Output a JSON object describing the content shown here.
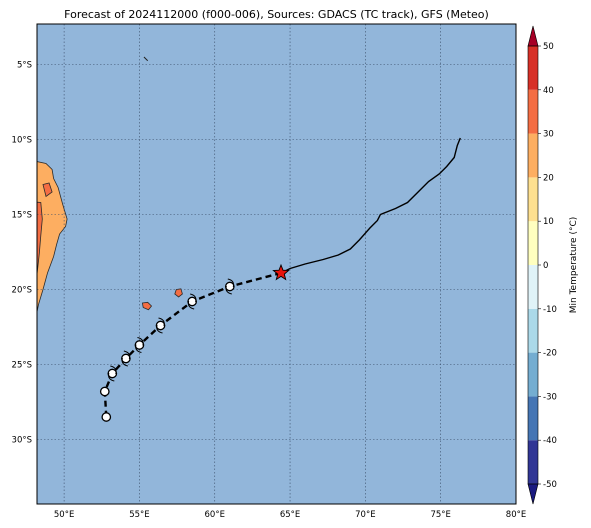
{
  "title": "Forecast of 2024112000 (f000-006), Sources: GDACS (TC track), GFS (Meteo)",
  "map": {
    "lon_range": [
      48.2,
      80
    ],
    "lat_range": [
      -34.3,
      -2.3
    ],
    "lon_ticks": [
      {
        "value": 50,
        "label": "50°E"
      },
      {
        "value": 55,
        "label": "55°E"
      },
      {
        "value": 60,
        "label": "60°E"
      },
      {
        "value": 65,
        "label": "65°E"
      },
      {
        "value": 70,
        "label": "70°E"
      },
      {
        "value": 75,
        "label": "75°E"
      },
      {
        "value": 80,
        "label": "80°E"
      }
    ],
    "lat_ticks": [
      {
        "value": -5,
        "label": "5°S"
      },
      {
        "value": -10,
        "label": "10°S"
      },
      {
        "value": -15,
        "label": "15°S"
      },
      {
        "value": -20,
        "label": "20°S"
      },
      {
        "value": -25,
        "label": "25°S"
      },
      {
        "value": -30,
        "label": "30°S"
      }
    ],
    "grid": true,
    "colors": {
      "ocean": "#92b6da",
      "land_warm": "#fdae61",
      "land_hot": "#f46d43",
      "coast": "#2b2b2b",
      "track": "#000000",
      "current_position": "#e8140c"
    }
  },
  "chart_data": {
    "type": "map",
    "observed_track": [
      [
        76.3,
        -9.9
      ],
      [
        76.1,
        -10.4
      ],
      [
        75.9,
        -11.2
      ],
      [
        75.4,
        -11.8
      ],
      [
        74.9,
        -12.3
      ],
      [
        74.2,
        -12.8
      ],
      [
        73.5,
        -13.5
      ],
      [
        72.8,
        -14.2
      ],
      [
        72.0,
        -14.6
      ],
      [
        71.0,
        -15.0
      ],
      [
        70.8,
        -15.4
      ],
      [
        70.3,
        -15.9
      ],
      [
        69.6,
        -16.7
      ],
      [
        69.0,
        -17.3
      ],
      [
        68.2,
        -17.7
      ],
      [
        67.2,
        -18.0
      ],
      [
        66.0,
        -18.3
      ],
      [
        65.0,
        -18.6
      ],
      [
        64.4,
        -18.9
      ]
    ],
    "current_position": {
      "lon": 64.4,
      "lat": -18.9
    },
    "forecast_positions": [
      {
        "lon": 61.0,
        "lat": -19.8
      },
      {
        "lon": 58.5,
        "lat": -20.8
      },
      {
        "lon": 56.4,
        "lat": -22.4
      },
      {
        "lon": 55.0,
        "lat": -23.7
      },
      {
        "lon": 54.1,
        "lat": -24.6
      },
      {
        "lon": 53.2,
        "lat": -25.6
      },
      {
        "lon": 52.7,
        "lat": -26.8
      },
      {
        "lon": 52.8,
        "lat": -28.5
      }
    ],
    "colorbar": {
      "label": "Min Temperature (°C)",
      "ticks": [
        -50,
        -40,
        -30,
        -20,
        -10,
        0,
        10,
        20,
        30,
        40,
        50
      ],
      "range": [
        -50,
        50
      ],
      "colors": [
        "#313695",
        "#4575b4",
        "#74add1",
        "#abd9e9",
        "#e0f3f8",
        "#ffffbf",
        "#fee090",
        "#fdae61",
        "#f46d43",
        "#d73027"
      ],
      "under_color": "#1a1a80",
      "over_color": "#a50026"
    }
  }
}
